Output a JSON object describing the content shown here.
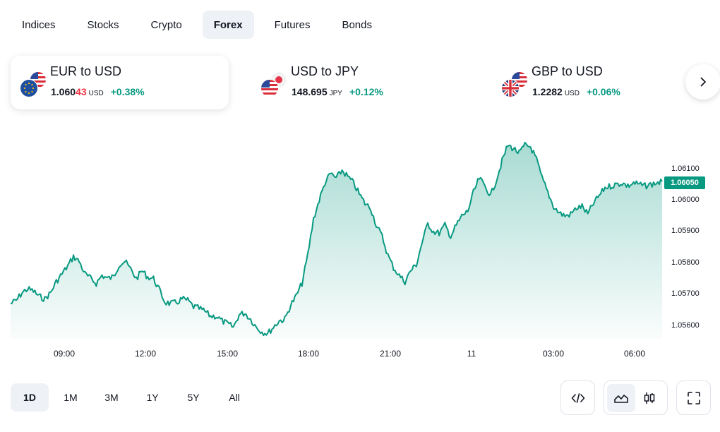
{
  "tabs": [
    {
      "label": "Indices",
      "active": false
    },
    {
      "label": "Stocks",
      "active": false
    },
    {
      "label": "Crypto",
      "active": false
    },
    {
      "label": "Forex",
      "active": true
    },
    {
      "label": "Futures",
      "active": false
    },
    {
      "label": "Bonds",
      "active": false
    }
  ],
  "cards": [
    {
      "pair": "EUR to USD",
      "price_main": "1.060",
      "price_highlight": "43",
      "currency": "USD",
      "change": "+0.38%",
      "selected": true,
      "flags": [
        "eu-flag-icon",
        "us-flag-icon"
      ]
    },
    {
      "pair": "USD to JPY",
      "price_main": "148.695",
      "price_highlight": "",
      "currency": "JPY",
      "change": "+0.12%",
      "selected": false,
      "flags": [
        "us-flag-icon",
        "jp-flag-icon"
      ]
    },
    {
      "pair": "GBP to USD",
      "price_main": "1.2282",
      "price_highlight": "",
      "currency": "USD",
      "change": "+0.06%",
      "selected": false,
      "flags": [
        "uk-flag-icon",
        "us-flag-icon"
      ]
    }
  ],
  "next_icon": "chevron-right-icon",
  "chart_data": {
    "type": "area",
    "y_ticks": [
      "1.06100",
      "1.06000",
      "1.05900",
      "1.05800",
      "1.05700",
      "1.05600"
    ],
    "x_ticks": [
      "09:00",
      "12:00",
      "15:00",
      "18:00",
      "21:00",
      "11",
      "03:00",
      "06:00"
    ],
    "ylim": [
      1.0555,
      1.0618
    ],
    "last_price": "1.06050",
    "line_color": "#089981",
    "grid": false,
    "series": [
      {
        "values": [
          1.05665,
          1.05675,
          1.057,
          1.05712,
          1.05705,
          1.05688,
          1.0568,
          1.057,
          1.05735,
          1.0576,
          1.05785,
          1.05815,
          1.058,
          1.0576,
          1.05745,
          1.0573,
          1.05755,
          1.05745,
          1.0575,
          1.0579,
          1.058,
          1.05775,
          1.05745,
          1.0577,
          1.0575,
          1.05745,
          1.0571,
          1.0567,
          1.05665,
          1.05668,
          1.0568,
          1.05675,
          1.05655,
          1.0565,
          1.0564,
          1.05625,
          1.05625,
          1.0561,
          1.056,
          1.0559,
          1.0563,
          1.05635,
          1.05615,
          1.0559,
          1.05575,
          1.0557,
          1.0559,
          1.0561,
          1.05615,
          1.0566,
          1.0569,
          1.0573,
          1.0582,
          1.05935,
          1.05995,
          1.0605,
          1.0608,
          1.06065,
          1.0609,
          1.0607,
          1.0605,
          1.06015,
          1.05985,
          1.0597,
          1.05915,
          1.0588,
          1.0582,
          1.0578,
          1.05755,
          1.05735,
          1.0577,
          1.0579,
          1.0586,
          1.0592,
          1.05895,
          1.0589,
          1.05915,
          1.0588,
          1.05915,
          1.05945,
          1.0596,
          1.0602,
          1.06065,
          1.0604,
          1.0601,
          1.0606,
          1.0612,
          1.0617,
          1.0616,
          1.06145,
          1.0617,
          1.06165,
          1.06125,
          1.06065,
          1.0602,
          1.05975,
          1.05955,
          1.05945,
          1.0595,
          1.0597,
          1.05975,
          1.0595,
          1.05985,
          1.0601,
          1.06035,
          1.0604,
          1.06045,
          1.0605,
          1.0604,
          1.0605,
          1.06045,
          1.0604,
          1.06045,
          1.0605,
          1.06055
        ]
      }
    ]
  },
  "ranges": [
    {
      "label": "1D",
      "active": true
    },
    {
      "label": "1M",
      "active": false
    },
    {
      "label": "3M",
      "active": false
    },
    {
      "label": "1Y",
      "active": false
    },
    {
      "label": "5Y",
      "active": false
    },
    {
      "label": "All",
      "active": false
    }
  ],
  "tools": {
    "embed_icon": "code-icon",
    "area_chart_icon": "area-chart-icon",
    "candles_icon": "candlestick-icon",
    "fullscreen_icon": "fullscreen-icon"
  }
}
